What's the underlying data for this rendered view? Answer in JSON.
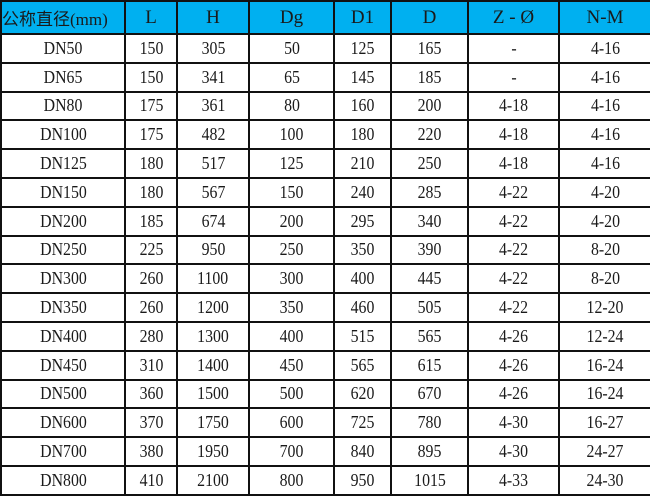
{
  "header_color": "#00b0f0",
  "columns": [
    "公称直径(mm)",
    "L",
    "H",
    "Dg",
    "D1",
    "D",
    "Z - Ø",
    "N-M"
  ],
  "rows": [
    [
      "DN50",
      "150",
      "305",
      "50",
      "125",
      "165",
      "-",
      "4-16"
    ],
    [
      "DN65",
      "150",
      "341",
      "65",
      "145",
      "185",
      "-",
      "4-16"
    ],
    [
      "DN80",
      "175",
      "361",
      "80",
      "160",
      "200",
      "4-18",
      "4-16"
    ],
    [
      "DN100",
      "175",
      "482",
      "100",
      "180",
      "220",
      "4-18",
      "4-16"
    ],
    [
      "DN125",
      "180",
      "517",
      "125",
      "210",
      "250",
      "4-18",
      "4-16"
    ],
    [
      "DN150",
      "180",
      "567",
      "150",
      "240",
      "285",
      "4-22",
      "4-20"
    ],
    [
      "DN200",
      "185",
      "674",
      "200",
      "295",
      "340",
      "4-22",
      "4-20"
    ],
    [
      "DN250",
      "225",
      "950",
      "250",
      "350",
      "390",
      "4-22",
      "8-20"
    ],
    [
      "DN300",
      "260",
      "1100",
      "300",
      "400",
      "445",
      "4-22",
      "8-20"
    ],
    [
      "DN350",
      "260",
      "1200",
      "350",
      "460",
      "505",
      "4-22",
      "12-20"
    ],
    [
      "DN400",
      "280",
      "1300",
      "400",
      "515",
      "565",
      "4-26",
      "12-24"
    ],
    [
      "DN450",
      "310",
      "1400",
      "450",
      "565",
      "615",
      "4-26",
      "16-24"
    ],
    [
      "DN500",
      "360",
      "1500",
      "500",
      "620",
      "670",
      "4-26",
      "16-24"
    ],
    [
      "DN600",
      "370",
      "1750",
      "600",
      "725",
      "780",
      "4-30",
      "16-27"
    ],
    [
      "DN700",
      "380",
      "1950",
      "700",
      "840",
      "895",
      "4-30",
      "24-27"
    ],
    [
      "DN800",
      "410",
      "2100",
      "800",
      "950",
      "1015",
      "4-33",
      "24-30"
    ]
  ]
}
